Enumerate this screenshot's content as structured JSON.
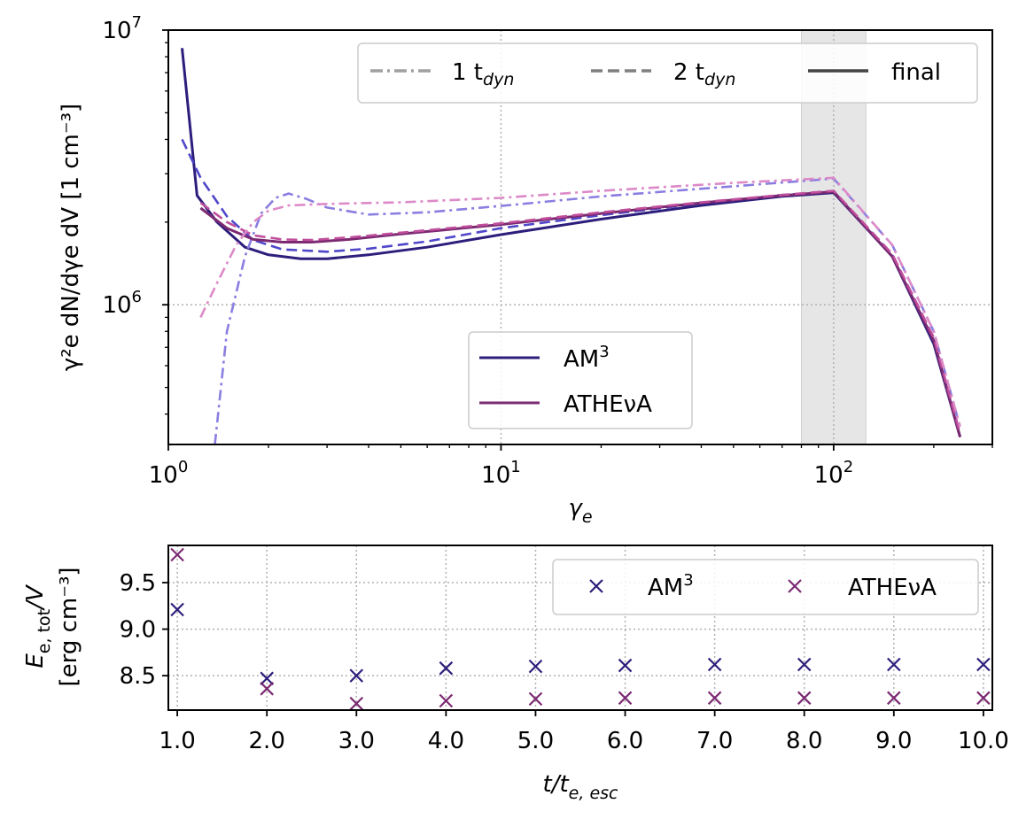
{
  "chart_data": [
    {
      "type": "line",
      "xscale": "log",
      "yscale": "log",
      "xlim": [
        1,
        300
      ],
      "ylim": [
        310000,
        10000000
      ],
      "xlabel_base": "γ",
      "xlabel_sub": "e",
      "ylabel": "γ²e dN/dγe dV [1 cm⁻³]",
      "x_ticks": [
        {
          "value": 1,
          "base": "10",
          "exp": "0"
        },
        {
          "value": 10,
          "base": "10",
          "exp": "1"
        },
        {
          "value": 100,
          "base": "10",
          "exp": "2"
        }
      ],
      "y_ticks": [
        {
          "value": 1000000,
          "base": "10",
          "exp": "6"
        },
        {
          "value": 10000000,
          "base": "10",
          "exp": "7"
        }
      ],
      "shaded_band": {
        "x_from": 80,
        "x_to": 125
      },
      "style_legend": [
        {
          "label": "1 t",
          "sub": "dyn",
          "linestyle": "dashdot"
        },
        {
          "label": "2 t",
          "sub": "dyn",
          "linestyle": "dashed"
        },
        {
          "label": "final",
          "linestyle": "solid"
        }
      ],
      "code_legend": [
        {
          "label": "AM",
          "sup": "3",
          "color": "#2d1e7c"
        },
        {
          "label": "ATHEνA",
          "color": "#7b2a72"
        }
      ],
      "series": [
        {
          "name": "AM3 final",
          "code": "AM3",
          "linestyle": "solid",
          "color": "#2d1e7c",
          "points": [
            [
              1.1,
              8600000
            ],
            [
              1.22,
              2500000
            ],
            [
              1.4,
              2000000
            ],
            [
              1.7,
              1620000
            ],
            [
              2.0,
              1520000
            ],
            [
              2.5,
              1470000
            ],
            [
              3,
              1470000
            ],
            [
              4,
              1520000
            ],
            [
              6,
              1620000
            ],
            [
              10,
              1800000
            ],
            [
              20,
              2050000
            ],
            [
              40,
              2300000
            ],
            [
              70,
              2480000
            ],
            [
              100,
              2560000
            ],
            [
              150,
              1500000
            ],
            [
              200,
              720000
            ],
            [
              240,
              330000
            ]
          ]
        },
        {
          "name": "AM3 2 tdyn",
          "code": "AM3",
          "linestyle": "dashed",
          "color": "#4f47c9",
          "points": [
            [
              1.1,
              4000000
            ],
            [
              1.25,
              2900000
            ],
            [
              1.5,
              2100000
            ],
            [
              1.8,
              1720000
            ],
            [
              2.2,
              1590000
            ],
            [
              3,
              1560000
            ],
            [
              4,
              1600000
            ],
            [
              6,
              1700000
            ],
            [
              10,
              1900000
            ],
            [
              20,
              2120000
            ],
            [
              40,
              2340000
            ],
            [
              70,
              2510000
            ],
            [
              100,
              2580000
            ],
            [
              150,
              1520000
            ],
            [
              200,
              750000
            ],
            [
              240,
              340000
            ]
          ]
        },
        {
          "name": "AM3 1 tdyn",
          "code": "AM3",
          "linestyle": "dashdot",
          "color": "#8a7ee0",
          "points": [
            [
              1.38,
              310000
            ],
            [
              1.5,
              800000
            ],
            [
              1.7,
              1500000
            ],
            [
              1.9,
              2150000
            ],
            [
              2.1,
              2450000
            ],
            [
              2.3,
              2540000
            ],
            [
              2.6,
              2430000
            ],
            [
              3,
              2260000
            ],
            [
              4,
              2130000
            ],
            [
              6,
              2170000
            ],
            [
              10,
              2290000
            ],
            [
              20,
              2480000
            ],
            [
              50,
              2700000
            ],
            [
              100,
              2880000
            ],
            [
              150,
              1650000
            ],
            [
              200,
              800000
            ],
            [
              240,
              360000
            ]
          ]
        },
        {
          "name": "ATHEvA final",
          "code": "ATHEvA",
          "linestyle": "solid",
          "color": "#7b2a72",
          "points": [
            [
              1.25,
              2250000
            ],
            [
              1.5,
              1900000
            ],
            [
              1.8,
              1730000
            ],
            [
              2.2,
              1690000
            ],
            [
              2.7,
              1690000
            ],
            [
              3.5,
              1730000
            ],
            [
              5,
              1810000
            ],
            [
              10,
              1960000
            ],
            [
              20,
              2150000
            ],
            [
              40,
              2350000
            ],
            [
              70,
              2500000
            ],
            [
              100,
              2580000
            ],
            [
              150,
              1500000
            ],
            [
              200,
              740000
            ],
            [
              240,
              330000
            ]
          ]
        },
        {
          "name": "ATHEvA 2 tdyn",
          "code": "ATHEvA",
          "linestyle": "dashed",
          "color": "#c04e9c",
          "points": [
            [
              1.25,
              2350000
            ],
            [
              1.5,
              2000000
            ],
            [
              1.8,
              1790000
            ],
            [
              2.2,
              1730000
            ],
            [
              2.7,
              1720000
            ],
            [
              3.5,
              1760000
            ],
            [
              5,
              1830000
            ],
            [
              10,
              1980000
            ],
            [
              20,
              2170000
            ],
            [
              40,
              2360000
            ],
            [
              70,
              2510000
            ],
            [
              100,
              2600000
            ],
            [
              150,
              1530000
            ],
            [
              200,
              760000
            ],
            [
              240,
              340000
            ]
          ]
        },
        {
          "name": "ATHEvA 1 tdyn",
          "code": "ATHEvA",
          "linestyle": "dashdot",
          "color": "#dc8ac8",
          "points": [
            [
              1.25,
              900000
            ],
            [
              1.4,
              1200000
            ],
            [
              1.6,
              1650000
            ],
            [
              1.8,
              2000000
            ],
            [
              2.0,
              2200000
            ],
            [
              2.3,
              2300000
            ],
            [
              3,
              2330000
            ],
            [
              5,
              2360000
            ],
            [
              10,
              2450000
            ],
            [
              20,
              2600000
            ],
            [
              50,
              2780000
            ],
            [
              100,
              2900000
            ],
            [
              150,
              1650000
            ],
            [
              200,
              800000
            ],
            [
              240,
              360000
            ]
          ]
        }
      ]
    },
    {
      "type": "scatter",
      "xlim": [
        0.9,
        10.1
      ],
      "ylim": [
        8.13,
        9.9
      ],
      "xlabel": "t/t",
      "xlabel_sub": "e, esc",
      "ylabel_line1": "E",
      "ylabel_line1_sub": "e, tot",
      "ylabel_line1_tail": "/V",
      "ylabel_line2": "[erg cm⁻³]",
      "x_ticks": [
        "1.0",
        "2.0",
        "3.0",
        "4.0",
        "5.0",
        "6.0",
        "7.0",
        "8.0",
        "9.0",
        "10.0"
      ],
      "y_ticks": [
        "8.5",
        "9.0",
        "9.5"
      ],
      "legend": [
        {
          "label": "AM",
          "sup": "3",
          "color": "#2d1e7c"
        },
        {
          "label": "ATHEνA",
          "color": "#7b2a72"
        }
      ],
      "series": [
        {
          "name": "AM3",
          "color": "#2d1e7c",
          "marker": "x",
          "x": [
            1,
            2,
            3,
            4,
            5,
            6,
            7,
            8,
            9,
            10
          ],
          "y": [
            9.21,
            8.47,
            8.5,
            8.58,
            8.6,
            8.61,
            8.62,
            8.62,
            8.62,
            8.62
          ]
        },
        {
          "name": "ATHEvA",
          "color": "#7b2a72",
          "marker": "x",
          "x": [
            1,
            2,
            3,
            4,
            5,
            6,
            7,
            8,
            9,
            10
          ],
          "y": [
            9.8,
            8.36,
            8.2,
            8.23,
            8.25,
            8.26,
            8.26,
            8.26,
            8.26,
            8.26
          ]
        }
      ]
    }
  ]
}
